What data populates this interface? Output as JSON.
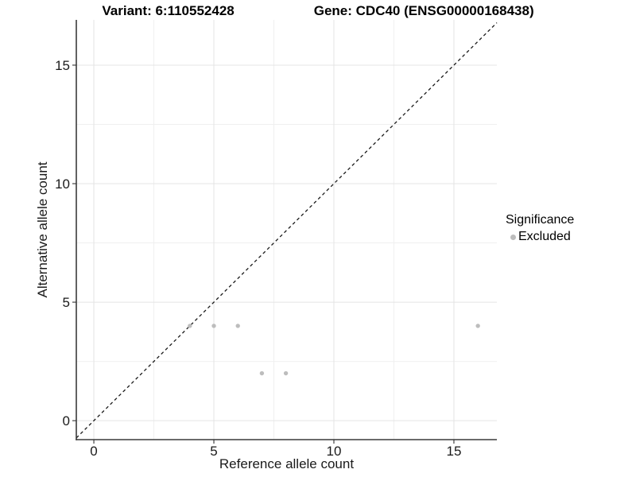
{
  "title": {
    "variant_part": "Variant: 6:110552428",
    "gene_part": "Gene: CDC40 (ENSG00000168438)"
  },
  "chart_data": {
    "type": "scatter",
    "title": "Variant: 6:110552428   Gene: CDC40 (ENSG00000168438)",
    "xlabel": "Reference allele count",
    "ylabel": "Alternative allele count",
    "xlim": [
      -0.73,
      16.79
    ],
    "ylim": [
      -0.8,
      16.91
    ],
    "x_ticks": [
      0,
      5,
      10,
      15
    ],
    "y_ticks": [
      0,
      5,
      10,
      15
    ],
    "x_minor_ticks": [
      2.5,
      7.5,
      12.5
    ],
    "y_minor_ticks": [
      2.5,
      7.5,
      12.5
    ],
    "grid": "major+minor",
    "legend_position": "right",
    "legend_title": "Significance",
    "series": [
      {
        "name": "Excluded",
        "color": "#bdbdbd",
        "marker": "circle",
        "points": [
          [
            4,
            4
          ],
          [
            5,
            4
          ],
          [
            6,
            4
          ],
          [
            7,
            2
          ],
          [
            8,
            2
          ],
          [
            16,
            4
          ]
        ]
      }
    ],
    "reference_line": {
      "kind": "identity y=x",
      "style": "dashed",
      "color": "#1a1a1a"
    }
  },
  "colors": {
    "background": "#ffffff",
    "grid_major": "#e4e4e4",
    "grid_minor": "#f0f0f0",
    "axis": "#3a3a3a",
    "tick": "#333333",
    "tick_text": "#1a1a1a",
    "title_text": "#000000",
    "point": "#bdbdbd"
  }
}
